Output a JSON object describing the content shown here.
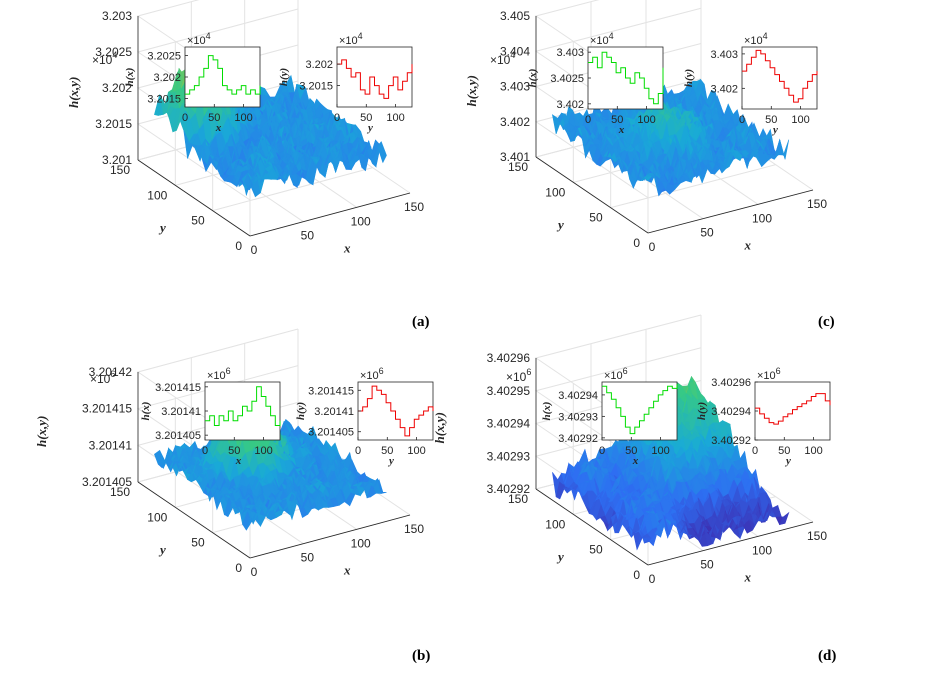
{
  "figure_panels": [
    "(a)",
    "(b)",
    "(c)",
    "(d)"
  ],
  "chart_data": [
    {
      "type": "surface",
      "panel": "(a)",
      "exponent": "4",
      "xlabel": "x",
      "ylabel": "y",
      "zlabel": "h(x,y)",
      "xticks": [
        "0",
        "50",
        "100",
        "150"
      ],
      "yticks": [
        "0",
        "50",
        "100",
        "150"
      ],
      "zticks": [
        "3.201",
        "3.2015",
        "3.202",
        "3.2025",
        "3.203"
      ],
      "xlim": [
        0,
        150
      ],
      "ylim": [
        0,
        150
      ],
      "zlim": [
        32010,
        32030
      ],
      "peak": {
        "x": 30,
        "y": 110,
        "z": 32027
      },
      "insets": [
        {
          "ylabel": "h(x)",
          "xlabel": "x",
          "color": "#00dd00",
          "exponent": "4",
          "yticks": [
            "3.2015",
            "3.202",
            "3.2025"
          ],
          "xticks": [
            "0",
            "50",
            "100"
          ],
          "xlim": [
            0,
            128
          ],
          "ylim": [
            32013,
            32027
          ],
          "x": [
            0,
            8,
            16,
            24,
            32,
            40,
            48,
            56,
            64,
            72,
            80,
            88,
            96,
            104,
            112,
            120,
            128
          ],
          "values": [
            32016,
            32017,
            32018,
            32020,
            32022,
            32025,
            32024,
            32022,
            32018,
            32017,
            32016,
            32017,
            32018,
            32016,
            32017,
            32016,
            32018
          ]
        },
        {
          "ylabel": "h(y)",
          "xlabel": "y",
          "color": "#ee0000",
          "exponent": "4",
          "yticks": [
            "3.2015",
            "3.202"
          ],
          "xticks": [
            "0",
            "50",
            "100"
          ],
          "xlim": [
            0,
            128
          ],
          "ylim": [
            32010,
            32024
          ],
          "x": [
            0,
            8,
            16,
            24,
            32,
            40,
            48,
            56,
            64,
            72,
            80,
            88,
            96,
            104,
            112,
            120,
            128
          ],
          "values": [
            32020,
            32021,
            32019,
            32017,
            32018,
            32014,
            32013,
            32017,
            32015,
            32013,
            32012,
            32015,
            32017,
            32014,
            32016,
            32018,
            32020
          ]
        }
      ]
    },
    {
      "type": "surface",
      "panel": "(b)",
      "exponent": "6",
      "xlabel": "x",
      "ylabel": "y",
      "zlabel": "h(x,y)",
      "xticks": [
        "0",
        "50",
        "100",
        "150"
      ],
      "yticks": [
        "0",
        "50",
        "100",
        "150"
      ],
      "zticks": [
        "3.201405",
        "3.20141",
        "3.201415",
        "3.20142"
      ],
      "xlim": [
        0,
        150
      ],
      "ylim": [
        0,
        150
      ],
      "zlim": [
        3201403,
        3201422
      ],
      "peak": {
        "x": 60,
        "y": 85,
        "z": 3201418
      },
      "insets": [
        {
          "ylabel": "h(x)",
          "xlabel": "x",
          "color": "#00dd00",
          "exponent": "6",
          "yticks": [
            "3.201405",
            "3.20141",
            "3.201415"
          ],
          "xticks": [
            "0",
            "50",
            "100"
          ],
          "xlim": [
            0,
            128
          ],
          "ylim": [
            3201404,
            3201416
          ],
          "x": [
            0,
            8,
            16,
            24,
            32,
            40,
            48,
            56,
            64,
            72,
            80,
            88,
            96,
            104,
            112,
            120,
            128
          ],
          "values": [
            3201408,
            3201409,
            3201407,
            3201409,
            3201408,
            3201410,
            3201408,
            3201409,
            3201411,
            3201410,
            3201412,
            3201415,
            3201413,
            3201411,
            3201409,
            3201407,
            3201408
          ]
        },
        {
          "ylabel": "h(y)",
          "xlabel": "y",
          "color": "#ee0000",
          "exponent": "6",
          "yticks": [
            "3.201405",
            "3.20141",
            "3.201415"
          ],
          "xticks": [
            "0",
            "50",
            "100"
          ],
          "xlim": [
            0,
            128
          ],
          "ylim": [
            3201403,
            3201417
          ],
          "x": [
            0,
            8,
            16,
            24,
            32,
            40,
            48,
            56,
            64,
            72,
            80,
            88,
            96,
            104,
            112,
            120,
            128
          ],
          "values": [
            3201410,
            3201411,
            3201413,
            3201416,
            3201415,
            3201414,
            3201412,
            3201410,
            3201408,
            3201406,
            3201404,
            3201406,
            3201408,
            3201409,
            3201410,
            3201411,
            3201410
          ]
        }
      ]
    },
    {
      "type": "surface",
      "panel": "(c)",
      "exponent": "4",
      "xlabel": "x",
      "ylabel": "y",
      "zlabel": "h(x,y)",
      "xticks": [
        "0",
        "50",
        "100",
        "150"
      ],
      "yticks": [
        "0",
        "50",
        "100",
        "150"
      ],
      "zticks": [
        "3.401",
        "3.402",
        "3.403",
        "3.404",
        "3.405"
      ],
      "xlim": [
        0,
        150
      ],
      "ylim": [
        0,
        150
      ],
      "zlim": [
        34010,
        34050
      ],
      "peak": {
        "x": 64,
        "y": 64,
        "z": 34031
      },
      "insets": [
        {
          "ylabel": "h(x)",
          "xlabel": "x",
          "color": "#00dd00",
          "exponent": "4",
          "yticks": [
            "3.402",
            "3.4025",
            "3.403"
          ],
          "xticks": [
            "0",
            "50",
            "100"
          ],
          "xlim": [
            0,
            128
          ],
          "ylim": [
            34019,
            34031
          ],
          "x": [
            0,
            8,
            16,
            24,
            32,
            40,
            48,
            56,
            64,
            72,
            80,
            88,
            96,
            104,
            112,
            120,
            128
          ],
          "values": [
            34028,
            34029,
            34027,
            34030,
            34029,
            34028,
            34026,
            34027,
            34025,
            34024,
            34026,
            34025,
            34023,
            34021,
            34020,
            34022,
            34027
          ]
        },
        {
          "ylabel": "h(y)",
          "xlabel": "y",
          "color": "#ee0000",
          "exponent": "4",
          "yticks": [
            "3.402",
            "3.403"
          ],
          "xticks": [
            "0",
            "50",
            "100"
          ],
          "xlim": [
            0,
            128
          ],
          "ylim": [
            34014,
            34032
          ],
          "x": [
            0,
            8,
            16,
            24,
            32,
            40,
            48,
            56,
            64,
            72,
            80,
            88,
            96,
            104,
            112,
            120,
            128
          ],
          "values": [
            34025,
            34027,
            34029,
            34031,
            34030,
            34028,
            34026,
            34024,
            34022,
            34020,
            34018,
            34016,
            34017,
            34020,
            34022,
            34024,
            34025
          ]
        }
      ]
    },
    {
      "type": "surface",
      "panel": "(d)",
      "exponent": "6",
      "xlabel": "x",
      "ylabel": "y",
      "zlabel": "h(x,y)",
      "xticks": [
        "0",
        "50",
        "100",
        "150"
      ],
      "yticks": [
        "0",
        "50",
        "100",
        "150"
      ],
      "zticks": [
        "3.40292",
        "3.40293",
        "3.40294",
        "3.40295",
        "3.40296"
      ],
      "xlim": [
        0,
        150
      ],
      "ylim": [
        0,
        150
      ],
      "zlim": [
        3402920,
        3402960
      ],
      "peak": {
        "x": 120,
        "y": 120,
        "z": 3402958
      },
      "insets": [
        {
          "ylabel": "h(x)",
          "xlabel": "x",
          "color": "#00dd00",
          "exponent": "6",
          "yticks": [
            "3.40292",
            "3.40293",
            "3.40294"
          ],
          "xticks": [
            "0",
            "50",
            "100"
          ],
          "xlim": [
            0,
            128
          ],
          "ylim": [
            3402919,
            3402946
          ],
          "x": [
            0,
            8,
            16,
            24,
            32,
            40,
            48,
            56,
            64,
            72,
            80,
            88,
            96,
            104,
            112,
            120,
            128
          ],
          "values": [
            3402944,
            3402941,
            3402938,
            3402934,
            3402930,
            3402925,
            3402922,
            3402925,
            3402928,
            3402931,
            3402934,
            3402937,
            3402940,
            3402942,
            3402944,
            3402943,
            3402945
          ]
        },
        {
          "ylabel": "h(y)",
          "xlabel": "y",
          "color": "#ee0000",
          "exponent": "6",
          "yticks": [
            "3.40292",
            "3.40294",
            "3.40296"
          ],
          "xticks": [
            "0",
            "50",
            "100"
          ],
          "xlim": [
            0,
            128
          ],
          "ylim": [
            3402920,
            3402960
          ],
          "x": [
            0,
            8,
            16,
            24,
            32,
            40,
            48,
            56,
            64,
            72,
            80,
            88,
            96,
            104,
            112,
            120,
            128
          ],
          "values": [
            3402942,
            3402938,
            3402935,
            3402932,
            3402931,
            3402933,
            3402936,
            3402938,
            3402941,
            3402943,
            3402945,
            3402947,
            3402950,
            3402952,
            3402952,
            3402947,
            3402944
          ]
        }
      ]
    }
  ]
}
